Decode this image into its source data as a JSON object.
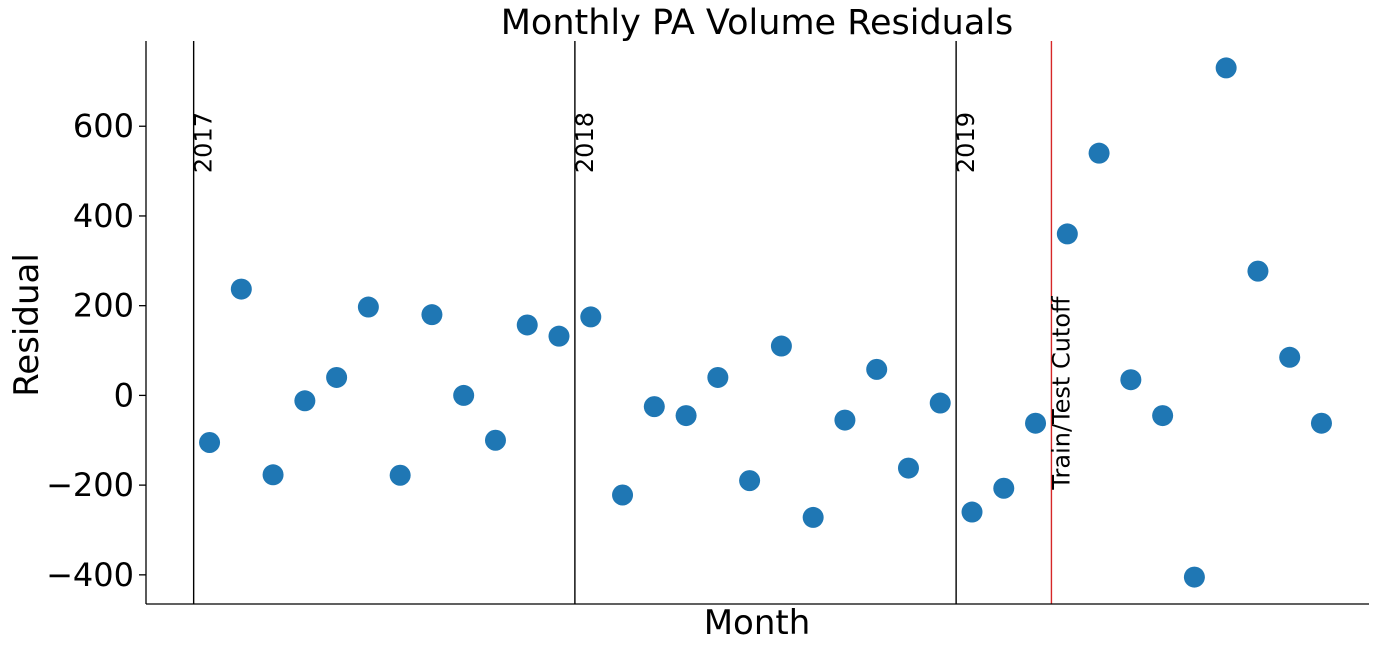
{
  "chart_data": {
    "type": "scatter",
    "title": "Monthly PA Volume Residuals",
    "xlabel": "Month",
    "ylabel": "Residual",
    "ylim": [
      -465,
      790
    ],
    "xlim": [
      2016.875,
      2020.083
    ],
    "yticks": [
      -400,
      -200,
      0,
      200,
      400,
      600
    ],
    "ytick_labels": [
      "−400",
      "−200",
      "0",
      "200",
      "400",
      "600"
    ],
    "grid": false,
    "marker_color": "#1f77b4",
    "series": [
      {
        "x": [
          2017.0417,
          2017.125,
          2017.2083,
          2017.2917,
          2017.375,
          2017.4583,
          2017.5417,
          2017.625,
          2017.7083,
          2017.7917,
          2017.875,
          2017.9583,
          2018.0417,
          2018.125,
          2018.2083,
          2018.2917,
          2018.375,
          2018.4583,
          2018.5417,
          2018.625,
          2018.7083,
          2018.7917,
          2018.875,
          2018.9583,
          2019.0417,
          2019.125,
          2019.2083,
          2019.2917,
          2019.375,
          2019.4583,
          2019.5417,
          2019.625,
          2019.7083,
          2019.7917,
          2019.875,
          2019.9583
        ],
        "y": [
          -105,
          237,
          -177,
          -12,
          40,
          197,
          -178,
          180,
          0,
          -100,
          157,
          132,
          175,
          -222,
          -25,
          -45,
          40,
          -190,
          110,
          -272,
          -55,
          58,
          -162,
          -17,
          -260,
          -207,
          -62,
          360,
          540,
          35,
          -45,
          -405,
          730,
          277,
          85,
          -62
        ]
      }
    ],
    "vlines": [
      {
        "x": 2017.0,
        "label": "2017",
        "color": "#000000"
      },
      {
        "x": 2018.0,
        "label": "2018",
        "color": "#000000"
      },
      {
        "x": 2019.0,
        "label": "2019",
        "color": "#000000"
      },
      {
        "x": 2019.25,
        "label": "Train/Test Cutoff",
        "color": "#d62728"
      }
    ]
  }
}
